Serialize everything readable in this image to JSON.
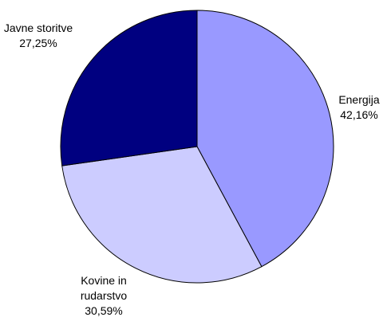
{
  "chart_data": {
    "type": "pie",
    "title": "",
    "slices": [
      {
        "label_lines": [
          "Energija"
        ],
        "value": 42.16,
        "value_label": "42,16%",
        "color": "#9999FF"
      },
      {
        "label_lines": [
          "Kovine in",
          "rudarstvo"
        ],
        "value": 30.59,
        "value_label": "30,59%",
        "color": "#CCCCFF"
      },
      {
        "label_lines": [
          "Javne storitve"
        ],
        "value": 27.25,
        "value_label": "27,25%",
        "color": "#000080"
      }
    ],
    "start_angle": "12 o'clock",
    "direction": "clockwise",
    "legend": "none",
    "data_labels": "outside, category name and percentage",
    "slice_border_color": "#000000"
  }
}
